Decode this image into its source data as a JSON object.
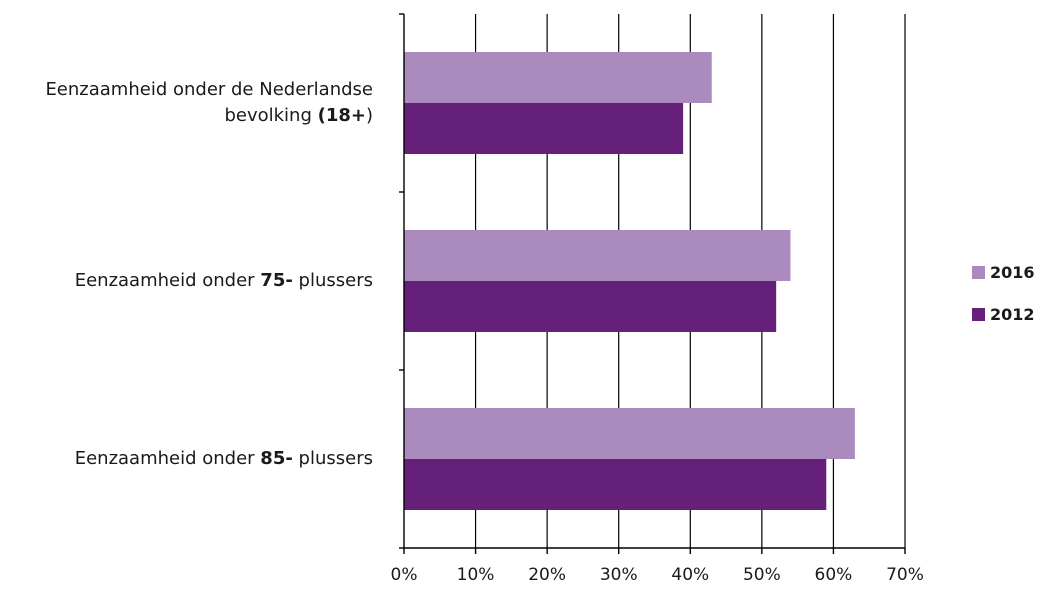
{
  "chart_data": {
    "type": "bar",
    "orientation": "horizontal",
    "categories": [
      "Eenzaamheid onder de Nederlandse bevolking (18+)",
      "Eenzaamheid onder 75-plussers",
      "Eenzaamheid onder 85-plussers"
    ],
    "category_label_parts": [
      [
        {
          "text": "Eenzaamheid  onder de Nederlandse",
          "bold": false,
          "br": true
        },
        {
          "text": "bevolking ",
          "bold": false
        },
        {
          "text": "(18+",
          "bold": true
        },
        {
          "text": ")",
          "bold": false
        }
      ],
      [
        {
          "text": "Eenzaamheid  onder ",
          "bold": false
        },
        {
          "text": "75-",
          "bold": true
        },
        {
          "text": " plussers",
          "bold": false
        }
      ],
      [
        {
          "text": "Eenzaamheid  onder ",
          "bold": false
        },
        {
          "text": "85-",
          "bold": true
        },
        {
          "text": " plussers",
          "bold": false
        }
      ]
    ],
    "series": [
      {
        "name": "2016",
        "color": "#AB8BBE",
        "values": [
          43,
          54,
          63
        ]
      },
      {
        "name": "2012",
        "color": "#65207A",
        "values": [
          39,
          52,
          59
        ]
      }
    ],
    "xlim": [
      0,
      70
    ],
    "x_ticks": [
      0,
      10,
      20,
      30,
      40,
      50,
      60,
      70
    ],
    "x_tick_labels": [
      "0%",
      "10%",
      "20%",
      "30%",
      "40%",
      "50%",
      "60%",
      "70%"
    ],
    "grid": true,
    "legend_position": "right"
  }
}
